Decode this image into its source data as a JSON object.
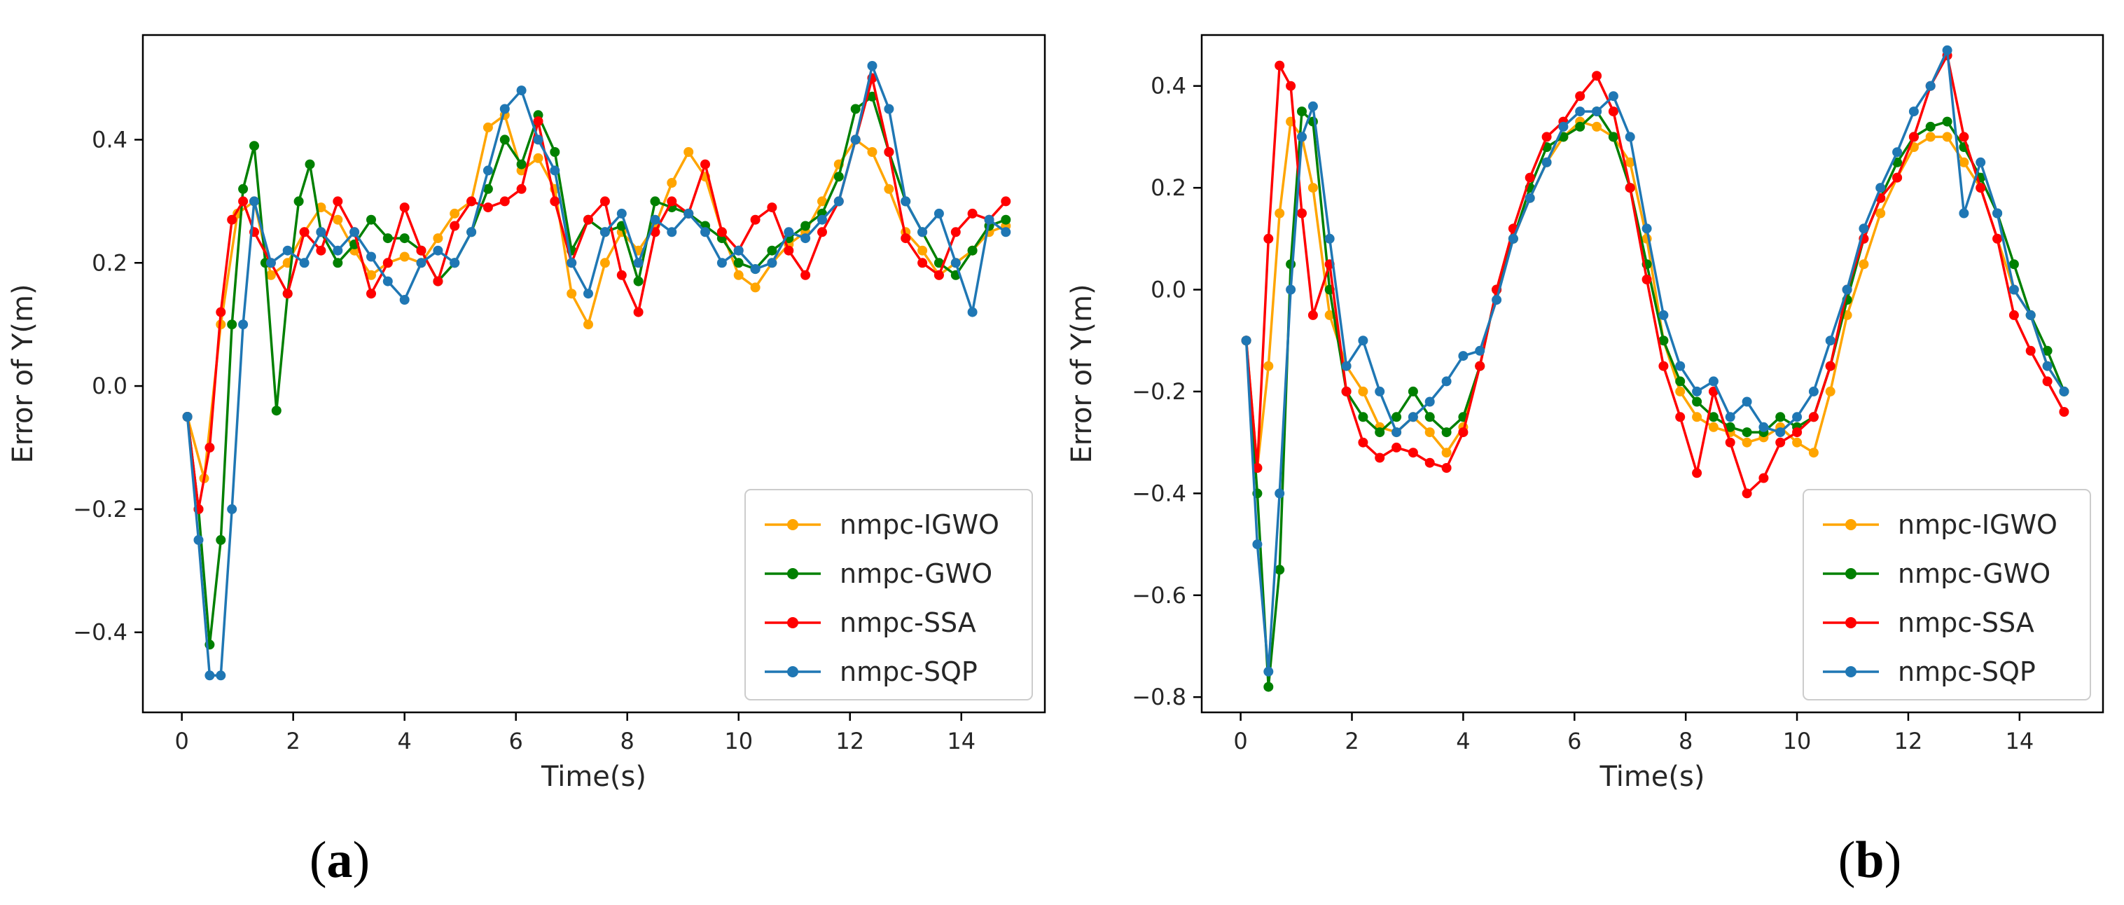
{
  "chart_data": [
    {
      "type": "line",
      "panel_label": "a",
      "title": "",
      "xlabel": "Time(s)",
      "ylabel": "Error of Y(m)",
      "xlim": [
        -0.7,
        15.5
      ],
      "ylim": [
        -0.53,
        0.57
      ],
      "xticks": [
        0,
        2,
        4,
        6,
        8,
        10,
        12,
        14
      ],
      "yticks": [
        -0.4,
        -0.2,
        0.0,
        0.2,
        0.4
      ],
      "xtick_labels": [
        "0",
        "2",
        "4",
        "6",
        "8",
        "10",
        "12",
        "14"
      ],
      "ytick_labels": [
        "−0.4",
        "−0.2",
        "0.0",
        "0.2",
        "0.4"
      ],
      "grid": false,
      "legend_position": "lower-right",
      "series": [
        {
          "name": "nmpc-IGWO",
          "color": "#FFA500",
          "x": [
            0.1,
            0.4,
            0.7,
            1.0,
            1.3,
            1.6,
            1.9,
            2.2,
            2.5,
            2.8,
            3.1,
            3.4,
            3.7,
            4.0,
            4.3,
            4.6,
            4.9,
            5.2,
            5.5,
            5.8,
            6.1,
            6.4,
            6.7,
            7.0,
            7.3,
            7.6,
            7.9,
            8.2,
            8.5,
            8.8,
            9.1,
            9.4,
            9.7,
            10.0,
            10.3,
            10.6,
            10.9,
            11.2,
            11.5,
            11.8,
            12.1,
            12.4,
            12.7,
            13.0,
            13.3,
            13.6,
            13.9,
            14.2,
            14.5,
            14.8
          ],
          "y": [
            -0.05,
            -0.15,
            0.1,
            0.28,
            0.3,
            0.18,
            0.2,
            0.25,
            0.29,
            0.27,
            0.22,
            0.18,
            0.2,
            0.21,
            0.2,
            0.24,
            0.28,
            0.3,
            0.42,
            0.44,
            0.35,
            0.37,
            0.32,
            0.15,
            0.1,
            0.2,
            0.25,
            0.22,
            0.26,
            0.33,
            0.38,
            0.34,
            0.25,
            0.18,
            0.16,
            0.2,
            0.23,
            0.25,
            0.3,
            0.36,
            0.4,
            0.38,
            0.32,
            0.25,
            0.22,
            0.18,
            0.2,
            0.22,
            0.25,
            0.26
          ]
        },
        {
          "name": "nmpc-GWO",
          "color": "#008000",
          "x": [
            0.1,
            0.3,
            0.5,
            0.7,
            0.9,
            1.1,
            1.3,
            1.5,
            1.7,
            1.9,
            2.1,
            2.3,
            2.5,
            2.8,
            3.1,
            3.4,
            3.7,
            4.0,
            4.3,
            4.6,
            4.9,
            5.2,
            5.5,
            5.8,
            6.1,
            6.4,
            6.7,
            7.0,
            7.3,
            7.6,
            7.9,
            8.2,
            8.5,
            8.8,
            9.1,
            9.4,
            9.7,
            10.0,
            10.3,
            10.6,
            10.9,
            11.2,
            11.5,
            11.8,
            12.1,
            12.4,
            12.7,
            13.0,
            13.3,
            13.6,
            13.9,
            14.2,
            14.5,
            14.8
          ],
          "y": [
            -0.05,
            -0.2,
            -0.42,
            -0.25,
            0.1,
            0.32,
            0.39,
            0.2,
            -0.04,
            0.15,
            0.3,
            0.36,
            0.25,
            0.2,
            0.23,
            0.27,
            0.24,
            0.24,
            0.22,
            0.17,
            0.2,
            0.25,
            0.32,
            0.4,
            0.36,
            0.44,
            0.38,
            0.22,
            0.27,
            0.25,
            0.26,
            0.17,
            0.3,
            0.29,
            0.28,
            0.26,
            0.24,
            0.2,
            0.19,
            0.22,
            0.24,
            0.26,
            0.28,
            0.34,
            0.45,
            0.47,
            0.38,
            0.3,
            0.25,
            0.2,
            0.18,
            0.22,
            0.26,
            0.27
          ]
        },
        {
          "name": "nmpc-SSA",
          "color": "#FF0000",
          "x": [
            0.1,
            0.3,
            0.5,
            0.7,
            0.9,
            1.1,
            1.3,
            1.6,
            1.9,
            2.2,
            2.5,
            2.8,
            3.1,
            3.4,
            3.7,
            4.0,
            4.3,
            4.6,
            4.9,
            5.2,
            5.5,
            5.8,
            6.1,
            6.4,
            6.7,
            7.0,
            7.3,
            7.6,
            7.9,
            8.2,
            8.5,
            8.8,
            9.1,
            9.4,
            9.7,
            10.0,
            10.3,
            10.6,
            10.9,
            11.2,
            11.5,
            11.8,
            12.1,
            12.4,
            12.7,
            13.0,
            13.3,
            13.6,
            13.9,
            14.2,
            14.5,
            14.8
          ],
          "y": [
            -0.05,
            -0.2,
            -0.1,
            0.12,
            0.27,
            0.3,
            0.25,
            0.2,
            0.15,
            0.25,
            0.22,
            0.3,
            0.25,
            0.15,
            0.2,
            0.29,
            0.22,
            0.17,
            0.26,
            0.3,
            0.29,
            0.3,
            0.32,
            0.43,
            0.3,
            0.2,
            0.27,
            0.3,
            0.18,
            0.12,
            0.25,
            0.3,
            0.28,
            0.36,
            0.25,
            0.22,
            0.27,
            0.29,
            0.22,
            0.18,
            0.25,
            0.3,
            0.4,
            0.5,
            0.38,
            0.24,
            0.2,
            0.18,
            0.25,
            0.28,
            0.27,
            0.3
          ]
        },
        {
          "name": "nmpc-SQP",
          "color": "#1F77B4",
          "x": [
            0.1,
            0.3,
            0.5,
            0.7,
            0.9,
            1.1,
            1.3,
            1.6,
            1.9,
            2.2,
            2.5,
            2.8,
            3.1,
            3.4,
            3.7,
            4.0,
            4.3,
            4.6,
            4.9,
            5.2,
            5.5,
            5.8,
            6.1,
            6.4,
            6.7,
            7.0,
            7.3,
            7.6,
            7.9,
            8.2,
            8.5,
            8.8,
            9.1,
            9.4,
            9.7,
            10.0,
            10.3,
            10.6,
            10.9,
            11.2,
            11.5,
            11.8,
            12.1,
            12.4,
            12.7,
            13.0,
            13.3,
            13.6,
            13.9,
            14.2,
            14.5,
            14.8
          ],
          "y": [
            -0.05,
            -0.25,
            -0.47,
            -0.47,
            -0.2,
            0.1,
            0.3,
            0.2,
            0.22,
            0.2,
            0.25,
            0.22,
            0.25,
            0.21,
            0.17,
            0.14,
            0.2,
            0.22,
            0.2,
            0.25,
            0.35,
            0.45,
            0.48,
            0.4,
            0.35,
            0.2,
            0.15,
            0.25,
            0.28,
            0.2,
            0.27,
            0.25,
            0.28,
            0.25,
            0.2,
            0.22,
            0.19,
            0.2,
            0.25,
            0.24,
            0.27,
            0.3,
            0.4,
            0.52,
            0.45,
            0.3,
            0.25,
            0.28,
            0.2,
            0.12,
            0.27,
            0.25
          ]
        }
      ]
    },
    {
      "type": "line",
      "panel_label": "b",
      "title": "",
      "xlabel": "Time(s)",
      "ylabel": "Error of Y(m)",
      "xlim": [
        -0.7,
        15.5
      ],
      "ylim": [
        -0.83,
        0.5
      ],
      "xticks": [
        0,
        2,
        4,
        6,
        8,
        10,
        12,
        14
      ],
      "yticks": [
        -0.8,
        -0.6,
        -0.4,
        -0.2,
        0.0,
        0.2,
        0.4
      ],
      "xtick_labels": [
        "0",
        "2",
        "4",
        "6",
        "8",
        "10",
        "12",
        "14"
      ],
      "ytick_labels": [
        "−0.8",
        "−0.6",
        "−0.4",
        "−0.2",
        "0.0",
        "0.2",
        "0.4"
      ],
      "grid": false,
      "legend_position": "lower-right",
      "series": [
        {
          "name": "nmpc-IGWO",
          "color": "#FFA500",
          "x": [
            0.1,
            0.3,
            0.5,
            0.7,
            0.9,
            1.1,
            1.3,
            1.6,
            1.9,
            2.2,
            2.5,
            2.8,
            3.1,
            3.4,
            3.7,
            4.0,
            4.3,
            4.6,
            4.9,
            5.2,
            5.5,
            5.8,
            6.1,
            6.4,
            6.7,
            7.0,
            7.3,
            7.6,
            7.9,
            8.2,
            8.5,
            8.8,
            9.1,
            9.4,
            9.7,
            10.0,
            10.3,
            10.6,
            10.9,
            11.2,
            11.5,
            11.8,
            12.1,
            12.4,
            12.7,
            13.0,
            13.3,
            13.6,
            13.9,
            14.2,
            14.5,
            14.8
          ],
          "y": [
            -0.1,
            -0.35,
            -0.15,
            0.15,
            0.33,
            0.3,
            0.2,
            -0.05,
            -0.15,
            -0.2,
            -0.27,
            -0.28,
            -0.25,
            -0.28,
            -0.32,
            -0.27,
            -0.15,
            0.0,
            0.1,
            0.18,
            0.25,
            0.3,
            0.33,
            0.32,
            0.3,
            0.25,
            0.1,
            -0.1,
            -0.2,
            -0.25,
            -0.27,
            -0.28,
            -0.3,
            -0.29,
            -0.27,
            -0.3,
            -0.32,
            -0.2,
            -0.05,
            0.05,
            0.15,
            0.22,
            0.28,
            0.3,
            0.3,
            0.25,
            0.2,
            0.1,
            0.0,
            -0.05,
            -0.15,
            -0.2
          ]
        },
        {
          "name": "nmpc-GWO",
          "color": "#008000",
          "x": [
            0.1,
            0.3,
            0.5,
            0.7,
            0.9,
            1.1,
            1.3,
            1.6,
            1.9,
            2.2,
            2.5,
            2.8,
            3.1,
            3.4,
            3.7,
            4.0,
            4.3,
            4.6,
            4.9,
            5.2,
            5.5,
            5.8,
            6.1,
            6.4,
            6.7,
            7.0,
            7.3,
            7.6,
            7.9,
            8.2,
            8.5,
            8.8,
            9.1,
            9.4,
            9.7,
            10.0,
            10.3,
            10.6,
            10.9,
            11.2,
            11.5,
            11.8,
            12.1,
            12.4,
            12.7,
            13.0,
            13.3,
            13.6,
            13.9,
            14.2,
            14.5,
            14.8
          ],
          "y": [
            -0.1,
            -0.4,
            -0.78,
            -0.55,
            0.05,
            0.35,
            0.33,
            0.0,
            -0.2,
            -0.25,
            -0.28,
            -0.25,
            -0.2,
            -0.25,
            -0.28,
            -0.25,
            -0.15,
            0.0,
            0.1,
            0.2,
            0.28,
            0.3,
            0.32,
            0.35,
            0.3,
            0.2,
            0.05,
            -0.1,
            -0.18,
            -0.22,
            -0.25,
            -0.27,
            -0.28,
            -0.28,
            -0.25,
            -0.27,
            -0.25,
            -0.15,
            -0.02,
            0.1,
            0.18,
            0.25,
            0.3,
            0.32,
            0.33,
            0.28,
            0.22,
            0.15,
            0.05,
            -0.05,
            -0.12,
            -0.2
          ]
        },
        {
          "name": "nmpc-SSA",
          "color": "#FF0000",
          "x": [
            0.1,
            0.3,
            0.5,
            0.7,
            0.9,
            1.1,
            1.3,
            1.6,
            1.9,
            2.2,
            2.5,
            2.8,
            3.1,
            3.4,
            3.7,
            4.0,
            4.3,
            4.6,
            4.9,
            5.2,
            5.5,
            5.8,
            6.1,
            6.4,
            6.7,
            7.0,
            7.3,
            7.6,
            7.9,
            8.2,
            8.5,
            8.8,
            9.1,
            9.4,
            9.7,
            10.0,
            10.3,
            10.6,
            10.9,
            11.2,
            11.5,
            11.8,
            12.1,
            12.4,
            12.7,
            13.0,
            13.3,
            13.6,
            13.9,
            14.2,
            14.5,
            14.8
          ],
          "y": [
            -0.1,
            -0.35,
            0.1,
            0.44,
            0.4,
            0.15,
            -0.05,
            0.05,
            -0.2,
            -0.3,
            -0.33,
            -0.31,
            -0.32,
            -0.34,
            -0.35,
            -0.28,
            -0.15,
            0.0,
            0.12,
            0.22,
            0.3,
            0.33,
            0.38,
            0.42,
            0.35,
            0.2,
            0.02,
            -0.15,
            -0.25,
            -0.36,
            -0.2,
            -0.3,
            -0.4,
            -0.37,
            -0.3,
            -0.28,
            -0.25,
            -0.15,
            0.0,
            0.1,
            0.18,
            0.22,
            0.3,
            0.4,
            0.46,
            0.3,
            0.2,
            0.1,
            -0.05,
            -0.12,
            -0.18,
            -0.24
          ]
        },
        {
          "name": "nmpc-SQP",
          "color": "#1F77B4",
          "x": [
            0.1,
            0.3,
            0.5,
            0.7,
            0.9,
            1.1,
            1.3,
            1.6,
            1.9,
            2.2,
            2.5,
            2.8,
            3.1,
            3.4,
            3.7,
            4.0,
            4.3,
            4.6,
            4.9,
            5.2,
            5.5,
            5.8,
            6.1,
            6.4,
            6.7,
            7.0,
            7.3,
            7.6,
            7.9,
            8.2,
            8.5,
            8.8,
            9.1,
            9.4,
            9.7,
            10.0,
            10.3,
            10.6,
            10.9,
            11.2,
            11.5,
            11.8,
            12.1,
            12.4,
            12.7,
            13.0,
            13.3,
            13.6,
            13.9,
            14.2,
            14.5,
            14.8
          ],
          "y": [
            -0.1,
            -0.5,
            -0.75,
            -0.4,
            0.0,
            0.3,
            0.36,
            0.1,
            -0.15,
            -0.1,
            -0.2,
            -0.28,
            -0.25,
            -0.22,
            -0.18,
            -0.13,
            -0.12,
            -0.02,
            0.1,
            0.18,
            0.25,
            0.32,
            0.35,
            0.35,
            0.38,
            0.3,
            0.12,
            -0.05,
            -0.15,
            -0.2,
            -0.18,
            -0.25,
            -0.22,
            -0.27,
            -0.28,
            -0.25,
            -0.2,
            -0.1,
            0.0,
            0.12,
            0.2,
            0.27,
            0.35,
            0.4,
            0.47,
            0.15,
            0.25,
            0.15,
            0.0,
            -0.05,
            -0.15,
            -0.2
          ]
        }
      ]
    }
  ]
}
